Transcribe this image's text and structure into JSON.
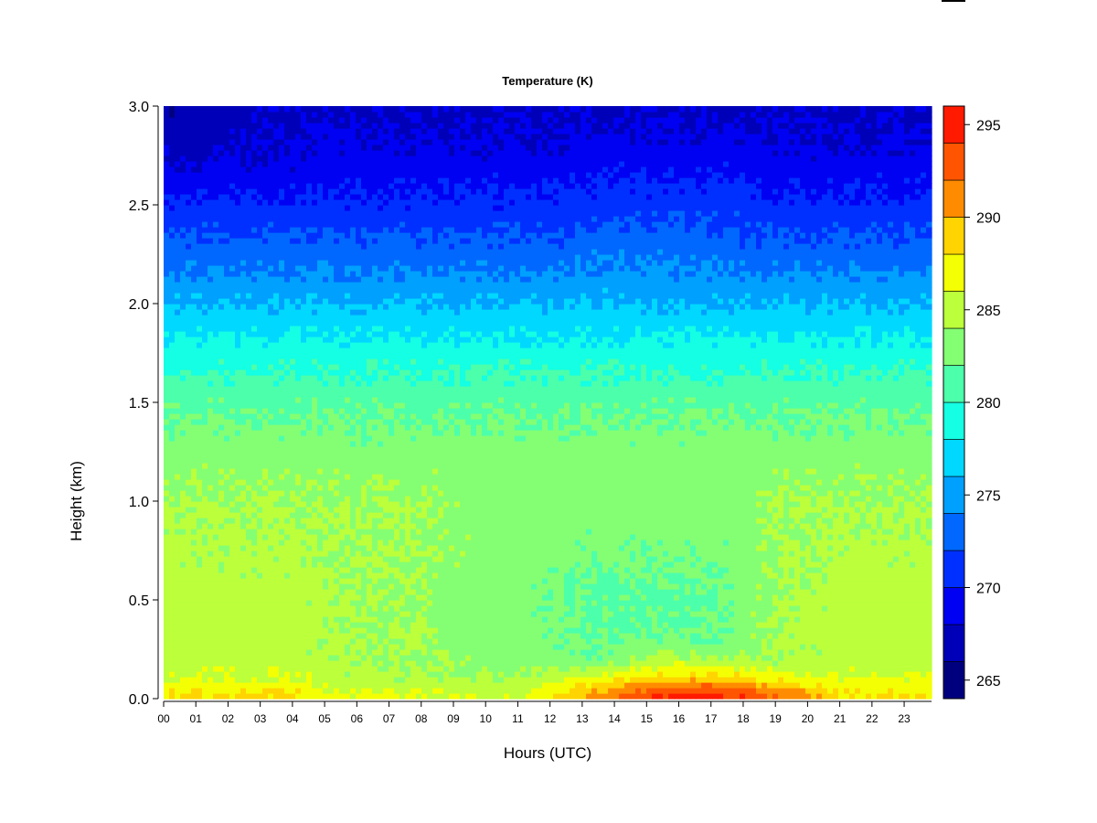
{
  "chart_data": {
    "type": "heatmap",
    "title": "Temperature (K)",
    "xlabel": "Hours (UTC)",
    "ylabel": "Height (km)",
    "x_ticks": [
      "00",
      "01",
      "02",
      "03",
      "04",
      "05",
      "06",
      "07",
      "08",
      "09",
      "10",
      "11",
      "12",
      "13",
      "14",
      "15",
      "16",
      "17",
      "18",
      "19",
      "20",
      "21",
      "22",
      "23"
    ],
    "xlim": [
      0,
      23.85
    ],
    "y_ticks": [
      "0.0",
      "0.5",
      "1.0",
      "1.5",
      "2.0",
      "2.5",
      "3.0"
    ],
    "ylim": [
      0,
      3.0
    ],
    "colorbar": {
      "ticks": [
        "265",
        "270",
        "275",
        "280",
        "285",
        "290",
        "295"
      ],
      "range": [
        264,
        296
      ],
      "levels": [
        264,
        266,
        268,
        270,
        272,
        274,
        276,
        278,
        280,
        282,
        284,
        286,
        288,
        290,
        292,
        294,
        296
      ],
      "colors": [
        "#00007F",
        "#0000B8",
        "#0000F2",
        "#0030FF",
        "#0068FF",
        "#00A0FF",
        "#00D8FF",
        "#14FFE3",
        "#4CFFAB",
        "#84FF73",
        "#BCFF3B",
        "#F4FF03",
        "#FFD400",
        "#FF8C00",
        "#FF5500",
        "#FF1A00",
        "#C40000",
        "#7F0000"
      ]
    },
    "hours": [
      0,
      1,
      2,
      3,
      4,
      5,
      6,
      7,
      8,
      9,
      10,
      11,
      12,
      13,
      14,
      15,
      16,
      17,
      18,
      19,
      20,
      21,
      22,
      23,
      23.85
    ],
    "heights_km": [
      0.0,
      0.05,
      0.1,
      0.2,
      0.3,
      0.5,
      0.75,
      1.0,
      1.25,
      1.5,
      1.75,
      2.0,
      2.25,
      2.5,
      2.75,
      3.0
    ],
    "values": [
      [
        288.5,
        288.5,
        288.5,
        288.5,
        288.5,
        286.5,
        286.5,
        286.5,
        286.5,
        286.5,
        286.5,
        286.5,
        288.5,
        290.5,
        292.5,
        294.5,
        295.5,
        295.5,
        294.5,
        292.5,
        290.5,
        288.5,
        288.5,
        288.5,
        288.5
      ],
      [
        287.5,
        287.5,
        287.5,
        287.5,
        287.5,
        286.0,
        286.0,
        285.5,
        285.5,
        285.0,
        285.0,
        285.0,
        286.5,
        288.5,
        290.5,
        292.0,
        293.0,
        293.0,
        292.0,
        290.5,
        289.0,
        287.5,
        287.5,
        287.5,
        287.5
      ],
      [
        286.0,
        286.0,
        286.0,
        286.0,
        286.0,
        285.0,
        285.0,
        284.5,
        284.5,
        284.0,
        284.0,
        284.0,
        285.0,
        286.5,
        287.5,
        288.5,
        289.0,
        289.0,
        288.5,
        287.5,
        286.5,
        286.0,
        286.0,
        286.0,
        286.0
      ],
      [
        285.0,
        285.0,
        285.0,
        285.0,
        285.0,
        284.5,
        284.0,
        284.0,
        284.0,
        283.5,
        283.5,
        283.0,
        283.0,
        282.5,
        283.0,
        284.0,
        284.5,
        284.5,
        284.0,
        284.0,
        284.5,
        285.0,
        285.0,
        285.0,
        285.0
      ],
      [
        285.0,
        285.0,
        285.0,
        285.0,
        285.0,
        284.5,
        284.0,
        284.0,
        284.0,
        283.0,
        283.0,
        283.0,
        282.5,
        282.0,
        282.0,
        282.0,
        282.0,
        282.0,
        283.0,
        284.0,
        284.5,
        285.0,
        285.0,
        285.0,
        285.0
      ],
      [
        285.0,
        285.0,
        285.0,
        285.0,
        285.0,
        284.5,
        284.0,
        284.0,
        284.0,
        283.0,
        283.0,
        283.0,
        282.0,
        281.5,
        281.5,
        281.5,
        281.5,
        281.5,
        283.0,
        284.0,
        284.5,
        285.0,
        285.0,
        285.0,
        285.0
      ],
      [
        284.5,
        284.5,
        284.5,
        284.5,
        284.5,
        284.0,
        284.0,
        284.0,
        284.0,
        283.5,
        283.0,
        283.0,
        283.0,
        282.5,
        282.5,
        282.5,
        282.5,
        282.5,
        283.0,
        284.0,
        284.0,
        284.5,
        284.5,
        284.5,
        284.5
      ],
      [
        284.0,
        284.0,
        284.0,
        284.0,
        284.0,
        284.0,
        284.0,
        284.0,
        284.0,
        283.5,
        283.0,
        283.0,
        283.0,
        283.0,
        283.0,
        283.0,
        283.0,
        283.0,
        283.0,
        284.0,
        284.0,
        284.0,
        284.0,
        284.0,
        284.0
      ],
      [
        283.0,
        283.0,
        283.0,
        283.0,
        283.0,
        283.0,
        283.0,
        283.0,
        283.0,
        283.0,
        283.0,
        283.0,
        283.0,
        283.0,
        283.0,
        283.0,
        283.0,
        283.0,
        283.0,
        283.0,
        283.0,
        283.0,
        283.0,
        283.0,
        283.0
      ],
      [
        281.5,
        281.5,
        281.5,
        281.5,
        281.5,
        281.5,
        281.5,
        281.5,
        281.5,
        281.5,
        281.5,
        281.5,
        281.5,
        281.5,
        281.5,
        281.5,
        281.5,
        281.5,
        281.5,
        281.5,
        281.5,
        281.5,
        281.5,
        281.5,
        281.5
      ],
      [
        279.0,
        279.0,
        279.0,
        279.0,
        279.0,
        279.0,
        279.0,
        279.0,
        279.0,
        279.0,
        279.0,
        279.0,
        279.0,
        279.0,
        279.0,
        279.0,
        279.0,
        279.0,
        279.0,
        279.0,
        279.0,
        279.0,
        279.0,
        279.0,
        279.0
      ],
      [
        276.0,
        276.0,
        276.0,
        276.0,
        276.0,
        276.0,
        276.0,
        276.0,
        276.0,
        276.0,
        276.0,
        276.0,
        276.0,
        276.0,
        276.0,
        276.0,
        276.0,
        276.0,
        276.0,
        276.0,
        276.0,
        276.0,
        276.0,
        276.0,
        276.0
      ],
      [
        273.0,
        273.0,
        273.0,
        273.0,
        273.0,
        273.0,
        273.0,
        273.0,
        273.0,
        273.0,
        273.0,
        273.0,
        273.0,
        273.5,
        273.5,
        273.5,
        273.5,
        273.5,
        273.0,
        273.0,
        273.0,
        273.0,
        273.0,
        273.0,
        273.0
      ],
      [
        270.5,
        270.5,
        270.5,
        270.5,
        270.5,
        270.5,
        270.5,
        270.5,
        270.5,
        270.5,
        270.5,
        270.5,
        270.5,
        271.0,
        271.0,
        271.0,
        271.0,
        271.0,
        271.0,
        270.5,
        270.5,
        270.5,
        270.5,
        270.5,
        270.5
      ],
      [
        267.5,
        267.5,
        268.0,
        268.0,
        268.0,
        268.5,
        268.5,
        268.5,
        268.5,
        268.5,
        268.5,
        268.5,
        268.5,
        269.0,
        269.0,
        269.0,
        269.0,
        269.0,
        269.0,
        268.5,
        268.5,
        268.5,
        268.5,
        268.5,
        268.5
      ],
      [
        266.5,
        266.5,
        267.0,
        267.5,
        267.5,
        267.5,
        267.5,
        267.5,
        267.5,
        267.5,
        267.5,
        267.5,
        267.5,
        267.5,
        267.5,
        267.5,
        267.5,
        267.5,
        267.5,
        267.5,
        267.5,
        267.5,
        267.5,
        267.5,
        267.5
      ]
    ],
    "legend_placement": "right (colorbar)",
    "grid": false
  }
}
